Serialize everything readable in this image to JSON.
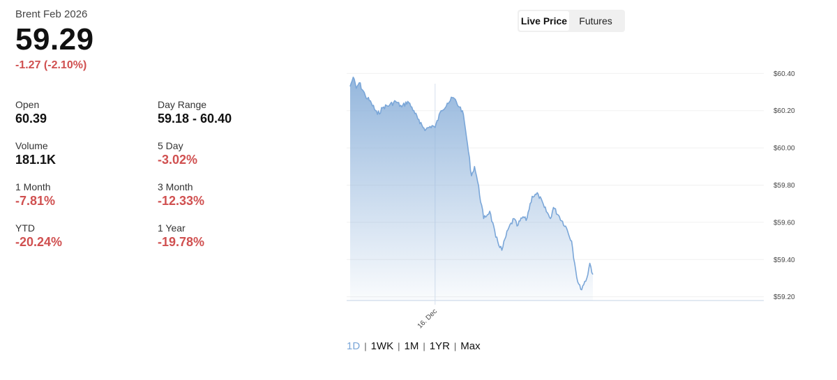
{
  "header": {
    "instrument": "Brent Feb 2026",
    "price": "59.29",
    "change": "-1.27 (-2.10%)"
  },
  "stats": [
    {
      "label": "Open",
      "value": "60.39",
      "tone": "neutral"
    },
    {
      "label": "Day Range",
      "value": "59.18 - 60.40",
      "tone": "neutral"
    },
    {
      "label": "Volume",
      "value": "181.1K",
      "tone": "neutral"
    },
    {
      "label": "5 Day",
      "value": "-3.02%",
      "tone": "negative"
    },
    {
      "label": "1 Month",
      "value": "-7.81%",
      "tone": "negative"
    },
    {
      "label": "3 Month",
      "value": "-12.33%",
      "tone": "negative"
    },
    {
      "label": "YTD",
      "value": "-20.24%",
      "tone": "negative"
    },
    {
      "label": "1 Year",
      "value": "-19.78%",
      "tone": "negative"
    }
  ],
  "toggle": {
    "live_label": "Live Price",
    "futures_label": "Futures"
  },
  "ranges": [
    "1D",
    "1WK",
    "1M",
    "1YR",
    "Max"
  ],
  "colors": {
    "negative": "#d05050",
    "line": "#7aa6d8",
    "active_range": "#7aa6d8"
  },
  "chart_data": {
    "type": "area",
    "y_tick_labels": [
      "$60.40",
      "$60.20",
      "$60.00",
      "$59.80",
      "$59.60",
      "$59.40",
      "$59.20"
    ],
    "y_ticks": [
      60.4,
      60.2,
      60.0,
      59.8,
      59.6,
      59.4,
      59.2
    ],
    "ylim": [
      59.18,
      60.42
    ],
    "x_tick_labels": [
      "16. Dec"
    ],
    "x_ticks": [
      0.28
    ],
    "grid": true,
    "series": [
      {
        "x": [
          0,
          0.01,
          0.02,
          0.03,
          0.05,
          0.07,
          0.09,
          0.11,
          0.13,
          0.15,
          0.17,
          0.19,
          0.21,
          0.23,
          0.25,
          0.27,
          0.28,
          0.3,
          0.32,
          0.34,
          0.36,
          0.37,
          0.38,
          0.39,
          0.4,
          0.41,
          0.42,
          0.44,
          0.46,
          0.48,
          0.5,
          0.52,
          0.54,
          0.55,
          0.57,
          0.58,
          0.6,
          0.62,
          0.64,
          0.66,
          0.67,
          0.69,
          0.71,
          0.73,
          0.74,
          0.75,
          0.76,
          0.78,
          0.79,
          0.8
        ],
        "y": [
          60.33,
          60.38,
          60.32,
          60.35,
          60.28,
          60.24,
          60.18,
          60.22,
          60.23,
          60.25,
          60.22,
          60.25,
          60.2,
          60.13,
          60.1,
          60.12,
          60.11,
          60.2,
          60.24,
          60.27,
          60.22,
          60.2,
          60.1,
          59.98,
          59.85,
          59.9,
          59.82,
          59.62,
          59.66,
          59.52,
          59.45,
          59.56,
          59.62,
          59.58,
          59.63,
          59.61,
          59.74,
          59.75,
          59.68,
          59.62,
          59.68,
          59.63,
          59.58,
          59.5,
          59.38,
          59.28,
          59.24,
          59.3,
          59.38,
          59.32
        ]
      }
    ]
  }
}
